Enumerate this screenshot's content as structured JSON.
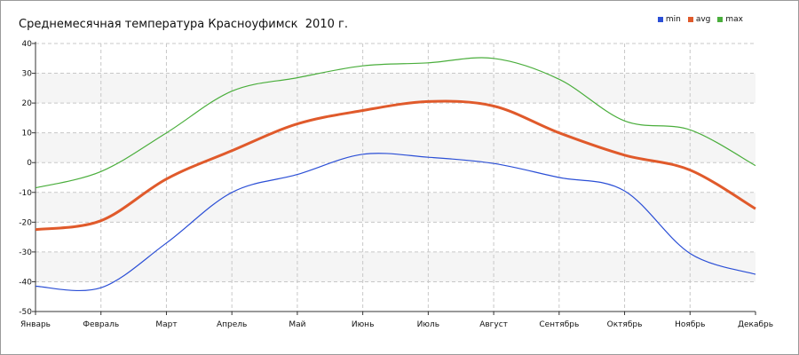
{
  "chart_data": {
    "type": "line",
    "title": "Среднемесячная температура Красноуфимск  2010 г.",
    "xlabel": "",
    "ylabel": "",
    "categories": [
      "Январь",
      "Февраль",
      "Март",
      "Апрель",
      "Май",
      "Июнь",
      "Июль",
      "Август",
      "Сентябрь",
      "Октябрь",
      "Ноябрь",
      "Декабрь"
    ],
    "ylim": [
      -50,
      40
    ],
    "yticks": [
      -50,
      -40,
      -30,
      -20,
      -10,
      0,
      10,
      20,
      30,
      40
    ],
    "grid": true,
    "legend_position": "top-right",
    "series": [
      {
        "name": "min",
        "color": "#2b4fd6",
        "values": [
          -41.5,
          -42,
          -27,
          -10,
          -4,
          2.8,
          1.8,
          -0.3,
          -5,
          -9.5,
          -30.5,
          -37.5
        ]
      },
      {
        "name": "avg",
        "color": "#e05a2b",
        "values": [
          -22.5,
          -19.5,
          -5.5,
          4,
          13,
          17.5,
          20.5,
          19,
          10,
          2.5,
          -2.5,
          -15.5
        ]
      },
      {
        "name": "max",
        "color": "#4aae3c",
        "values": [
          -8.5,
          -3,
          10,
          24,
          28.5,
          32.5,
          33.5,
          35,
          28,
          14,
          11,
          -1
        ]
      }
    ]
  }
}
